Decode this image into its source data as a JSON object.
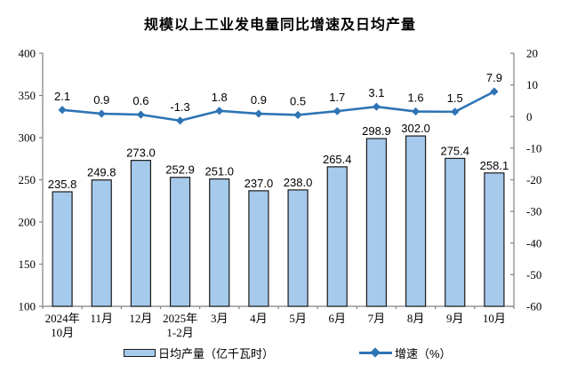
{
  "title": "规模以上工业发电量同比增速及日均产量",
  "chart_data": {
    "type": "bar+line combo",
    "title": "规模以上工业发电量同比增速及日均产量",
    "categories": [
      [
        "2024年",
        "10月"
      ],
      [
        "11月"
      ],
      [
        "12月"
      ],
      [
        "2025年",
        "1-2月"
      ],
      [
        "3月"
      ],
      [
        "4月"
      ],
      [
        "5月"
      ],
      [
        "6月"
      ],
      [
        "7月"
      ],
      [
        "8月"
      ],
      [
        "9月"
      ],
      [
        "10月"
      ]
    ],
    "series": [
      {
        "name": "日均产量（亿千瓦时）",
        "type": "bar",
        "axis": "left",
        "values": [
          235.8,
          249.8,
          273.0,
          252.9,
          251.0,
          237.0,
          238.0,
          265.4,
          298.9,
          302.0,
          275.4,
          258.1
        ],
        "labels": [
          "235.8",
          "249.8",
          "273.0",
          "252.9",
          "251.0",
          "237.0",
          "238.0",
          "265.4",
          "298.9",
          "302.0",
          "275.4",
          "258.1"
        ],
        "fill_color": "#A6CAEC",
        "border_color": "#1a1a1a"
      },
      {
        "name": "增速（%）",
        "type": "line",
        "axis": "right",
        "values": [
          2.1,
          0.9,
          0.6,
          -1.3,
          1.8,
          0.9,
          0.5,
          1.7,
          3.1,
          1.6,
          1.5,
          7.9
        ],
        "labels": [
          "2.1",
          "0.9",
          "0.6",
          "-1.3",
          "1.8",
          "0.9",
          "0.5",
          "1.7",
          "3.1",
          "1.6",
          "1.5",
          "7.9"
        ],
        "color": "#2E74B5"
      }
    ],
    "left_axis": {
      "min": 100,
      "max": 400,
      "step": 50,
      "ticks": [
        "400",
        "350",
        "300",
        "250",
        "200",
        "150",
        "100"
      ]
    },
    "right_axis": {
      "min": -60,
      "max": 20,
      "step": 10,
      "ticks": [
        "20",
        "10",
        "0",
        "-10",
        "-20",
        "-30",
        "-40",
        "-50",
        "-60"
      ]
    },
    "axis_color": "#808080",
    "grid": "off",
    "legend_position": "bottom"
  }
}
